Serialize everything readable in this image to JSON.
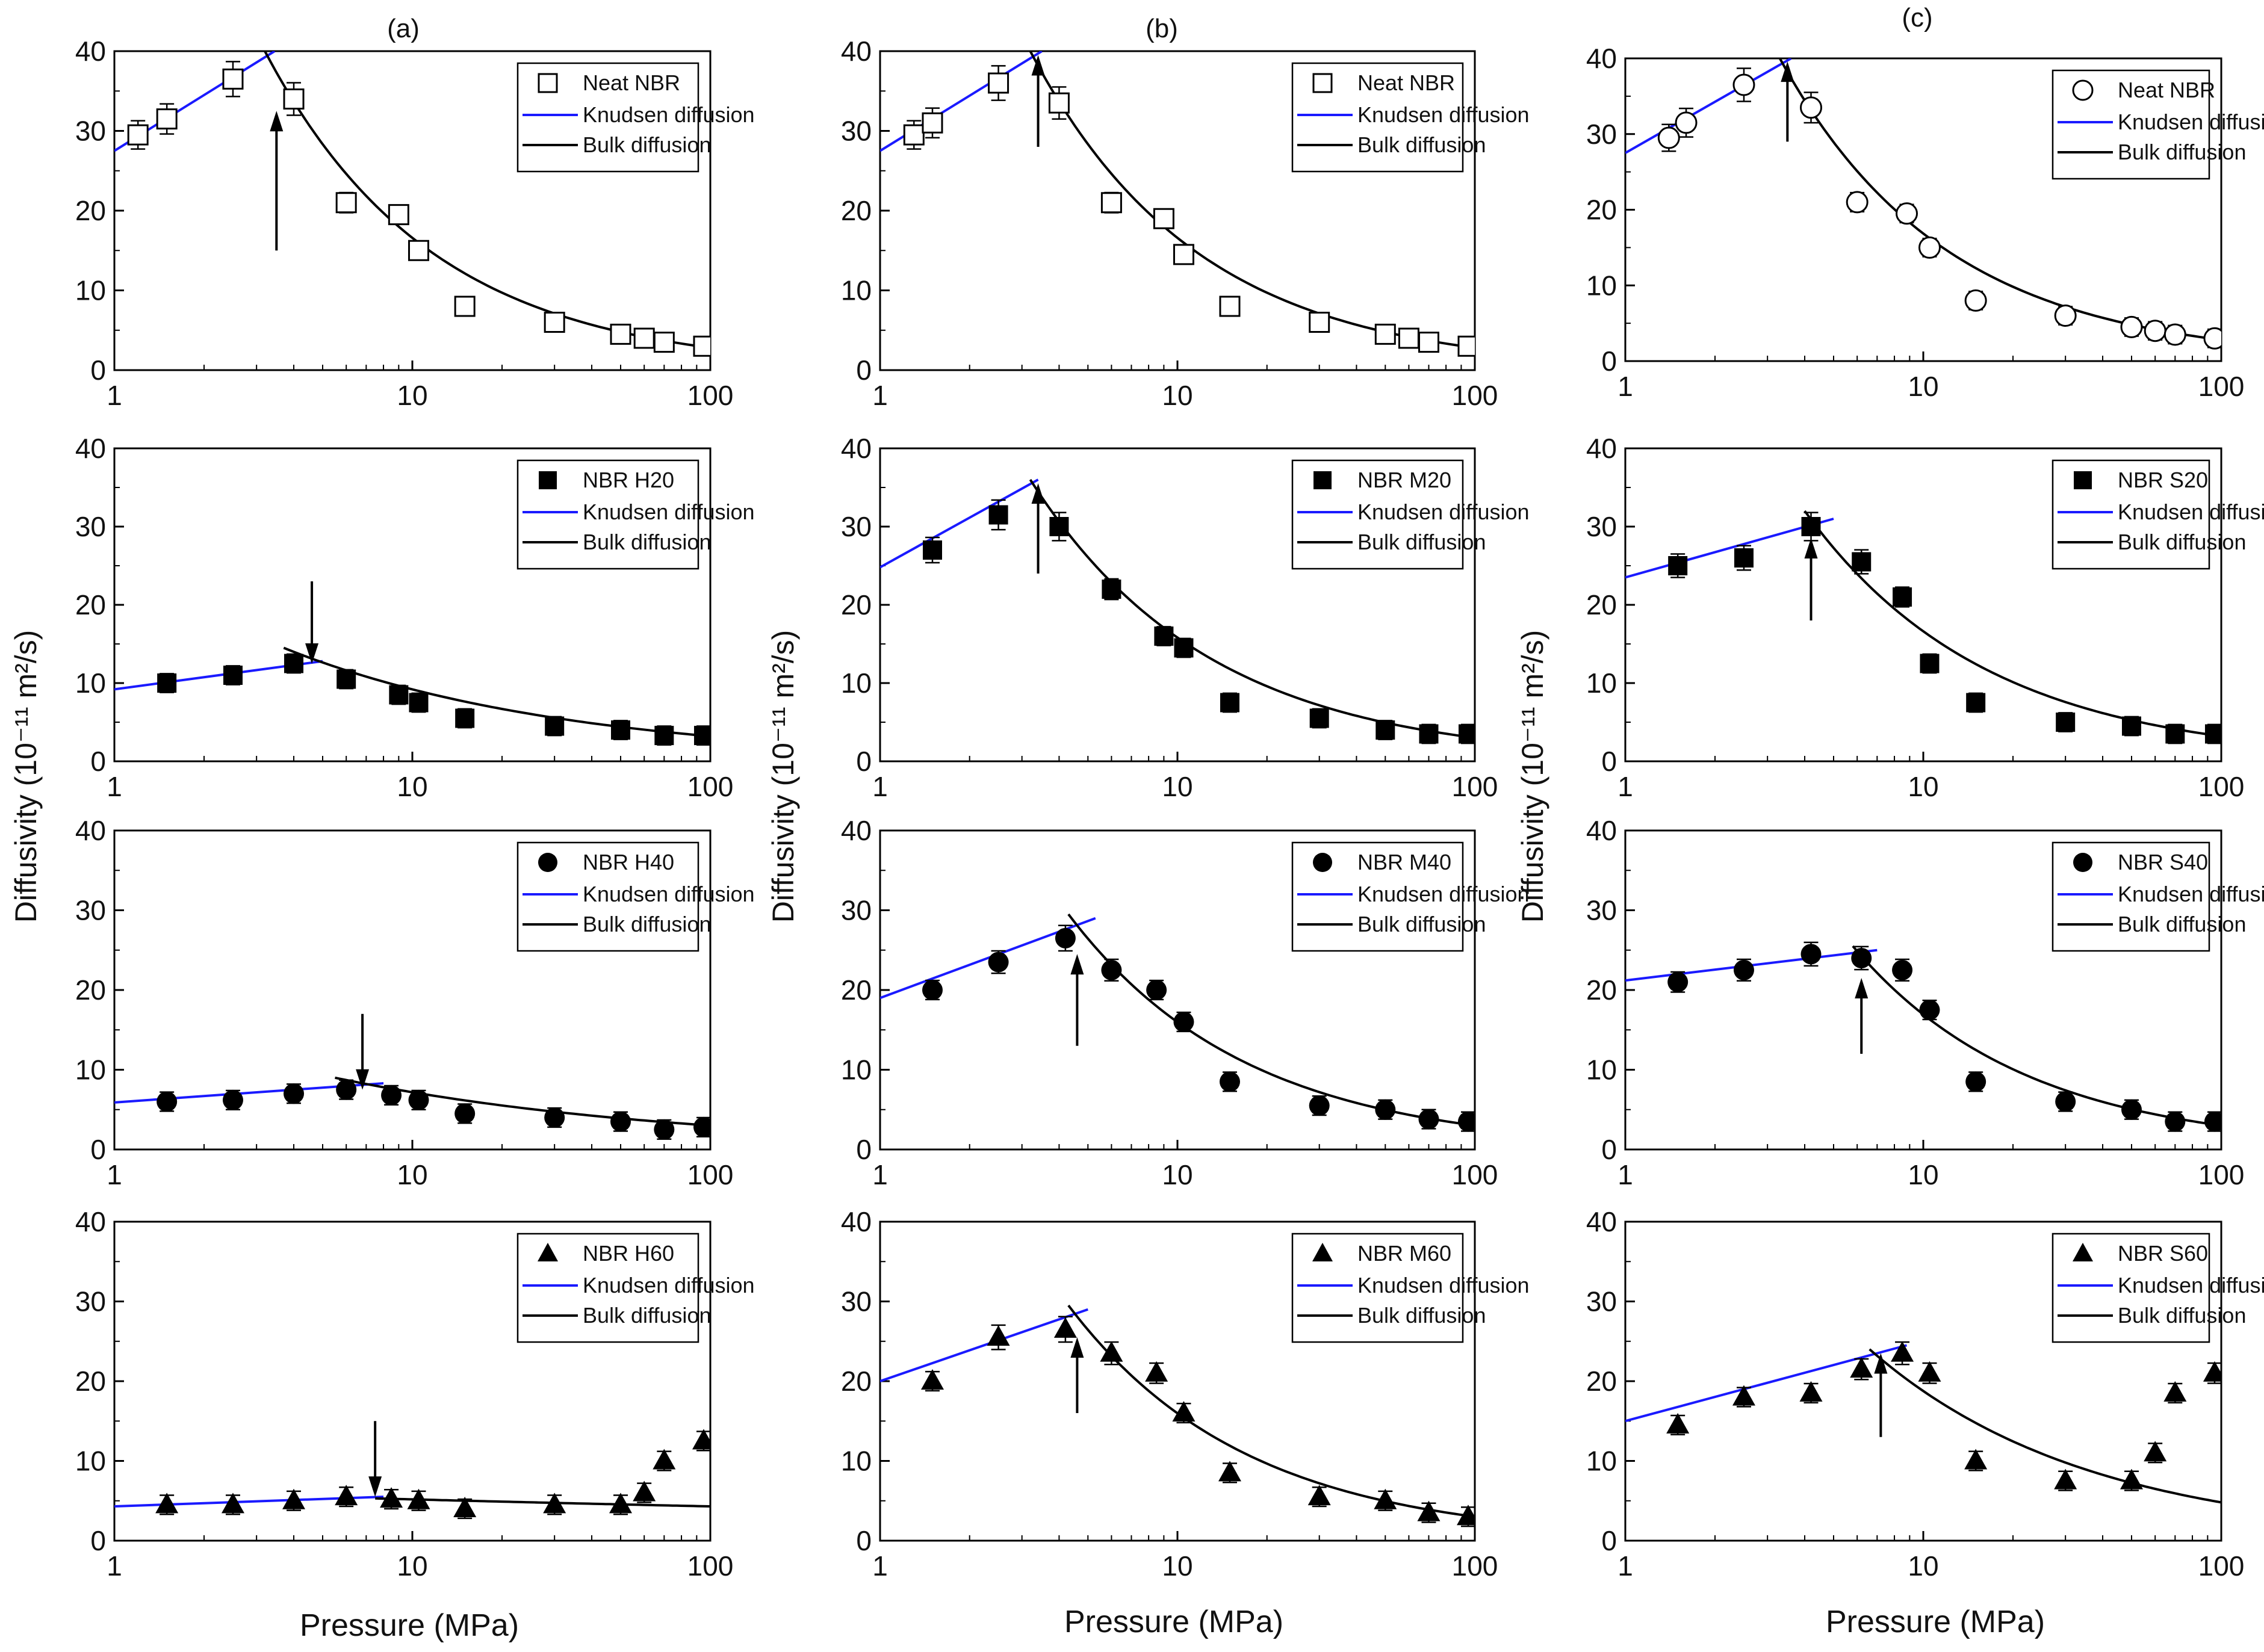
{
  "figure": {
    "y_axis_label": "Diffusivity (10⁻¹¹ m²/s)",
    "x_axis_label": "Pressure (MPa)",
    "column_labels": [
      "(a)",
      "(b)",
      "(c)"
    ],
    "colors": {
      "knudsen": "#1a1aff",
      "bulk": "#000000",
      "markers": "#000000"
    }
  },
  "chart_data": [
    {
      "id": "a1",
      "type": "scatter",
      "xscale": "log",
      "xlim": [
        1,
        100
      ],
      "ylim": [
        0,
        40
      ],
      "xticks": [
        1,
        10,
        100
      ],
      "yticks": [
        0,
        10,
        20,
        30,
        40
      ],
      "legend": [
        "Neat NBR",
        "Knudsen diffusion",
        "Bulk diffusion"
      ],
      "marker": "square-open",
      "error_bars": true,
      "series": [
        {
          "name": "Neat NBR",
          "x": [
            1.2,
            1.5,
            2.5,
            4.0,
            6.0,
            9.0,
            10.5,
            15,
            30,
            50,
            60,
            70,
            95
          ],
          "y": [
            29.5,
            31.5,
            36.5,
            34,
            21,
            19.5,
            15,
            8,
            6,
            4.5,
            4,
            3.5,
            3
          ]
        }
      ],
      "knudsen": {
        "x": [
          1,
          3.45
        ],
        "y": [
          27.5,
          40
        ]
      },
      "bulk": {
        "x": [
          3.2,
          100
        ],
        "y": [
          40,
          2.8
        ]
      },
      "arrow": {
        "x": 3.5,
        "direction": "up",
        "y_from": 15,
        "y_to": 31
      }
    },
    {
      "id": "b1",
      "type": "scatter",
      "xscale": "log",
      "xlim": [
        1,
        100
      ],
      "ylim": [
        0,
        40
      ],
      "xticks": [
        1,
        10,
        100
      ],
      "yticks": [
        0,
        10,
        20,
        30,
        40
      ],
      "legend": [
        "Neat NBR",
        "Knudsen diffusion",
        "Bulk diffusion"
      ],
      "marker": "square-open",
      "error_bars": true,
      "series": [
        {
          "name": "Neat NBR",
          "x": [
            1.3,
            1.5,
            2.5,
            4.0,
            6.0,
            9.0,
            10.5,
            15,
            30,
            50,
            60,
            70,
            95
          ],
          "y": [
            29.5,
            31,
            36,
            33.5,
            21,
            19,
            14.5,
            8,
            6,
            4.5,
            4,
            3.5,
            3
          ]
        }
      ],
      "knudsen": {
        "x": [
          1,
          3.5
        ],
        "y": [
          27.5,
          40
        ]
      },
      "bulk": {
        "x": [
          3.2,
          100
        ],
        "y": [
          40,
          2.8
        ]
      },
      "arrow": {
        "x": 3.4,
        "direction": "up",
        "y_from": 28,
        "y_to": 38
      }
    },
    {
      "id": "c1",
      "type": "scatter",
      "xscale": "log",
      "xlim": [
        1,
        100
      ],
      "ylim": [
        0,
        40
      ],
      "xticks": [
        1,
        10,
        100
      ],
      "yticks": [
        0,
        10,
        20,
        30,
        40
      ],
      "legend": [
        "Neat NBR",
        "Knudsen diffusion",
        "Bulk diffusion"
      ],
      "marker": "circle-open",
      "error_bars": true,
      "series": [
        {
          "name": "Neat NBR",
          "x": [
            1.4,
            1.6,
            2.5,
            4.2,
            6.0,
            8.8,
            10.5,
            15,
            30,
            50,
            60,
            70,
            95
          ],
          "y": [
            29.5,
            31.5,
            36.5,
            33.5,
            21,
            19.5,
            15,
            8,
            6,
            4.5,
            4,
            3.5,
            3
          ]
        }
      ],
      "knudsen": {
        "x": [
          1,
          3.6
        ],
        "y": [
          27.5,
          40
        ]
      },
      "bulk": {
        "x": [
          3.3,
          100
        ],
        "y": [
          40,
          2.8
        ]
      },
      "arrow": {
        "x": 3.5,
        "direction": "up",
        "y_from": 29,
        "y_to": 38
      }
    },
    {
      "id": "a2",
      "type": "scatter",
      "xscale": "log",
      "xlim": [
        1,
        100
      ],
      "ylim": [
        0,
        40
      ],
      "xticks": [
        1,
        10,
        100
      ],
      "yticks": [
        0,
        10,
        20,
        30,
        40
      ],
      "legend": [
        "NBR H20",
        "Knudsen diffusion",
        "Bulk diffusion"
      ],
      "marker": "square-filled",
      "error_bars": true,
      "series": [
        {
          "name": "NBR H20",
          "x": [
            1.5,
            2.5,
            4.0,
            6.0,
            9.0,
            10.5,
            15,
            30,
            50,
            70,
            95
          ],
          "y": [
            10,
            11,
            12.5,
            10.5,
            8.5,
            7.5,
            5.5,
            4.5,
            4,
            3.3,
            3.3
          ]
        }
      ],
      "knudsen": {
        "x": [
          1,
          5.0
        ],
        "y": [
          9.2,
          12.8
        ]
      },
      "bulk": {
        "x": [
          3.7,
          100
        ],
        "y": [
          14.5,
          3.2
        ]
      },
      "arrow": {
        "x": 4.6,
        "direction": "down",
        "y_from": 23,
        "y_to": 14
      }
    },
    {
      "id": "b2",
      "type": "scatter",
      "xscale": "log",
      "xlim": [
        1,
        100
      ],
      "ylim": [
        0,
        40
      ],
      "xticks": [
        1,
        10,
        100
      ],
      "yticks": [
        0,
        10,
        20,
        30,
        40
      ],
      "legend": [
        "NBR M20",
        "Knudsen diffusion",
        "Bulk diffusion"
      ],
      "marker": "square-filled",
      "error_bars": true,
      "series": [
        {
          "name": "NBR M20",
          "x": [
            1.5,
            2.5,
            4.0,
            6.0,
            9.0,
            10.5,
            15,
            30,
            50,
            70,
            95
          ],
          "y": [
            27,
            31.5,
            30,
            22,
            16,
            14.5,
            7.5,
            5.5,
            4,
            3.5,
            3.5
          ]
        }
      ],
      "knudsen": {
        "x": [
          1,
          3.4
        ],
        "y": [
          24.8,
          36
        ]
      },
      "bulk": {
        "x": [
          3.2,
          100
        ],
        "y": [
          36,
          3
        ]
      },
      "arrow": {
        "x": 3.4,
        "direction": "up",
        "y_from": 24,
        "y_to": 34
      }
    },
    {
      "id": "c2",
      "type": "scatter",
      "xscale": "log",
      "xlim": [
        1,
        100
      ],
      "ylim": [
        0,
        40
      ],
      "xticks": [
        1,
        10,
        100
      ],
      "yticks": [
        0,
        10,
        20,
        30,
        40
      ],
      "legend": [
        "NBR S20",
        "Knudsen diffusion",
        "Bulk diffusion"
      ],
      "marker": "square-filled",
      "error_bars": true,
      "series": [
        {
          "name": "NBR S20",
          "x": [
            1.5,
            2.5,
            4.2,
            6.2,
            8.5,
            10.5,
            15,
            30,
            50,
            70,
            95
          ],
          "y": [
            25,
            26,
            30,
            25.5,
            21,
            12.5,
            7.5,
            5,
            4.5,
            3.5,
            3.5
          ]
        }
      ],
      "knudsen": {
        "x": [
          1,
          5.0
        ],
        "y": [
          23.5,
          31
        ]
      },
      "bulk": {
        "x": [
          4.0,
          100
        ],
        "y": [
          32,
          3.2
        ]
      },
      "arrow": {
        "x": 4.2,
        "direction": "up",
        "y_from": 18,
        "y_to": 27
      }
    },
    {
      "id": "a3",
      "type": "scatter",
      "xscale": "log",
      "xlim": [
        1,
        100
      ],
      "ylim": [
        0,
        40
      ],
      "xticks": [
        1,
        10,
        100
      ],
      "yticks": [
        0,
        10,
        20,
        30,
        40
      ],
      "legend": [
        "NBR H40",
        "Knudsen diffusion",
        "Bulk diffusion"
      ],
      "marker": "circle-filled",
      "error_bars": true,
      "series": [
        {
          "name": "NBR H40",
          "x": [
            1.5,
            2.5,
            4.0,
            6.0,
            8.5,
            10.5,
            15,
            30,
            50,
            70,
            95
          ],
          "y": [
            6,
            6.2,
            7,
            7.5,
            6.8,
            6.2,
            4.5,
            4,
            3.5,
            2.5,
            2.8
          ]
        }
      ],
      "knudsen": {
        "x": [
          1,
          8.0
        ],
        "y": [
          5.9,
          8.3
        ]
      },
      "bulk": {
        "x": [
          5.5,
          100
        ],
        "y": [
          9,
          3
        ]
      },
      "arrow": {
        "x": 6.8,
        "direction": "down",
        "y_from": 17,
        "y_to": 9
      }
    },
    {
      "id": "b3",
      "type": "scatter",
      "xscale": "log",
      "xlim": [
        1,
        100
      ],
      "ylim": [
        0,
        40
      ],
      "xticks": [
        1,
        10,
        100
      ],
      "yticks": [
        0,
        10,
        20,
        30,
        40
      ],
      "legend": [
        "NBR M40",
        "Knudsen diffusion",
        "Bulk diffusion"
      ],
      "marker": "circle-filled",
      "error_bars": true,
      "series": [
        {
          "name": "NBR M40",
          "x": [
            1.5,
            2.5,
            4.2,
            6.0,
            8.5,
            10.5,
            15,
            30,
            50,
            70,
            95
          ],
          "y": [
            20,
            23.5,
            26.5,
            22.5,
            20,
            16,
            8.5,
            5.5,
            5,
            3.8,
            3.5
          ]
        }
      ],
      "knudsen": {
        "x": [
          1,
          5.3
        ],
        "y": [
          19,
          29
        ]
      },
      "bulk": {
        "x": [
          4.3,
          100
        ],
        "y": [
          29.5,
          3
        ]
      },
      "arrow": {
        "x": 4.6,
        "direction": "up",
        "y_from": 13,
        "y_to": 23
      }
    },
    {
      "id": "c3",
      "type": "scatter",
      "xscale": "log",
      "xlim": [
        1,
        100
      ],
      "ylim": [
        0,
        40
      ],
      "xticks": [
        1,
        10,
        100
      ],
      "yticks": [
        0,
        10,
        20,
        30,
        40
      ],
      "legend": [
        "NBR S40",
        "Knudsen diffusion",
        "Bulk diffusion"
      ],
      "marker": "circle-filled",
      "error_bars": true,
      "series": [
        {
          "name": "NBR S40",
          "x": [
            1.5,
            2.5,
            4.2,
            6.2,
            8.5,
            10.5,
            15,
            30,
            50,
            70,
            95
          ],
          "y": [
            21,
            22.5,
            24.5,
            24,
            22.5,
            17.5,
            8.5,
            6,
            5,
            3.5,
            3.5
          ]
        }
      ],
      "knudsen": {
        "x": [
          1,
          7.0
        ],
        "y": [
          21.2,
          25
        ]
      },
      "bulk": {
        "x": [
          5.8,
          100
        ],
        "y": [
          25.5,
          3
        ]
      },
      "arrow": {
        "x": 6.2,
        "direction": "up",
        "y_from": 12,
        "y_to": 20
      }
    },
    {
      "id": "a4",
      "type": "scatter",
      "xscale": "log",
      "xlim": [
        1,
        100
      ],
      "ylim": [
        0,
        40
      ],
      "xticks": [
        1,
        10,
        100
      ],
      "yticks": [
        0,
        10,
        20,
        30,
        40
      ],
      "legend": [
        "NBR H60",
        "Knudsen diffusion",
        "Bulk diffusion"
      ],
      "marker": "triangle-filled",
      "error_bars": true,
      "series": [
        {
          "name": "NBR H60",
          "x": [
            1.5,
            2.5,
            4.0,
            6.0,
            8.5,
            10.5,
            15,
            30,
            50,
            60,
            70,
            95
          ],
          "y": [
            4.5,
            4.5,
            5,
            5.5,
            5.2,
            5,
            4,
            4.5,
            4.5,
            6,
            10,
            12.5
          ]
        }
      ],
      "knudsen": {
        "x": [
          1,
          8.0
        ],
        "y": [
          4.3,
          5.5
        ]
      },
      "bulk": {
        "x": [
          7.5,
          100
        ],
        "y": [
          5.3,
          4.3
        ]
      },
      "arrow": {
        "x": 7.5,
        "direction": "down",
        "y_from": 15,
        "y_to": 7
      }
    },
    {
      "id": "b4",
      "type": "scatter",
      "xscale": "log",
      "xlim": [
        1,
        100
      ],
      "ylim": [
        0,
        40
      ],
      "xticks": [
        1,
        10,
        100
      ],
      "yticks": [
        0,
        10,
        20,
        30,
        40
      ],
      "legend": [
        "NBR M60",
        "Knudsen diffusion",
        "Bulk diffusion"
      ],
      "marker": "triangle-filled",
      "error_bars": true,
      "series": [
        {
          "name": "NBR M60",
          "x": [
            1.5,
            2.5,
            4.2,
            6.0,
            8.5,
            10.5,
            15,
            30,
            50,
            70,
            95
          ],
          "y": [
            20,
            25.5,
            26.5,
            23.5,
            21,
            16,
            8.5,
            5.5,
            5,
            3.5,
            3
          ]
        }
      ],
      "knudsen": {
        "x": [
          1,
          5.0
        ],
        "y": [
          20,
          29
        ]
      },
      "bulk": {
        "x": [
          4.3,
          100
        ],
        "y": [
          29.5,
          3
        ]
      },
      "arrow": {
        "x": 4.6,
        "direction": "up",
        "y_from": 16,
        "y_to": 24
      }
    },
    {
      "id": "c4",
      "type": "scatter",
      "xscale": "log",
      "xlim": [
        1,
        100
      ],
      "ylim": [
        0,
        40
      ],
      "xticks": [
        1,
        10,
        100
      ],
      "yticks": [
        0,
        10,
        20,
        30,
        40
      ],
      "legend": [
        "NBR S60",
        "Knudsen diffusion",
        "Bulk diffusion"
      ],
      "marker": "triangle-filled",
      "error_bars": true,
      "series": [
        {
          "name": "NBR S60",
          "x": [
            1.5,
            2.5,
            4.2,
            6.2,
            8.5,
            10.5,
            15,
            30,
            50,
            60,
            70,
            95
          ],
          "y": [
            14.5,
            18,
            18.5,
            21.5,
            23.5,
            21,
            10,
            7.5,
            7.5,
            11,
            18.5,
            21
          ]
        }
      ],
      "knudsen": {
        "x": [
          1,
          8.8
        ],
        "y": [
          15,
          24.5
        ]
      },
      "bulk": {
        "x": [
          6.6,
          100
        ],
        "y": [
          24,
          4.8
        ]
      },
      "arrow": {
        "x": 7.2,
        "direction": "up",
        "y_from": 13,
        "y_to": 22
      }
    }
  ]
}
